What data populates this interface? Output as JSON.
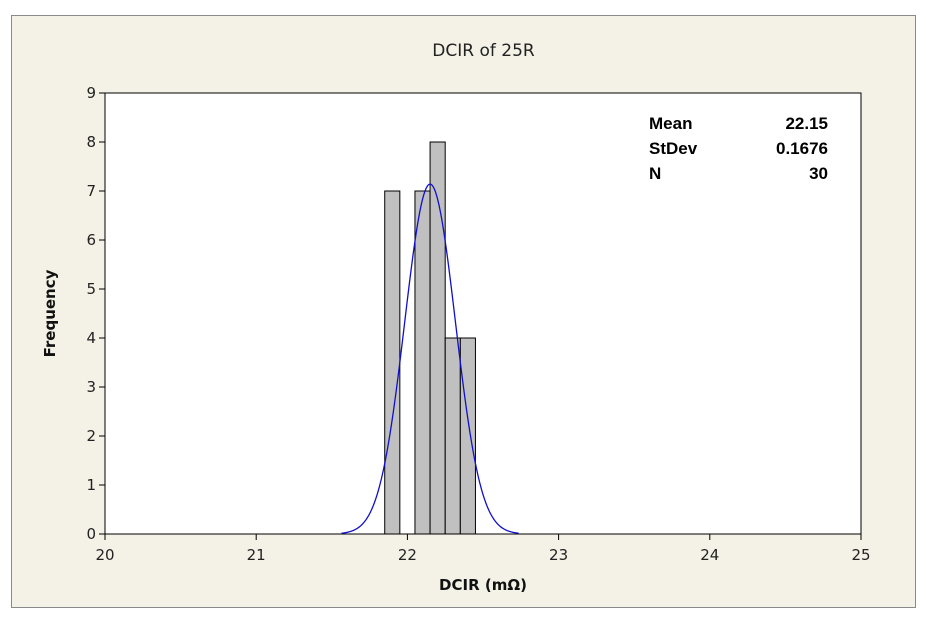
{
  "chart_data": {
    "type": "bar",
    "title": "DCIR of 25R",
    "xlabel": "DCIR (mΩ)",
    "ylabel": "Frequency",
    "xlim": [
      20,
      25
    ],
    "ylim": [
      0,
      9
    ],
    "xticks": [
      "20",
      "21",
      "22",
      "23",
      "24",
      "25"
    ],
    "yticks": [
      "0",
      "1",
      "2",
      "3",
      "4",
      "5",
      "6",
      "7",
      "8",
      "9"
    ],
    "bin_width": 0.1,
    "bins": [
      {
        "x": 21.9,
        "count": 7
      },
      {
        "x": 22.0,
        "count": 0
      },
      {
        "x": 22.1,
        "count": 7
      },
      {
        "x": 22.2,
        "count": 8
      },
      {
        "x": 22.3,
        "count": 4
      },
      {
        "x": 22.4,
        "count": 4
      }
    ],
    "fit": {
      "type": "normal",
      "mean": 22.15,
      "stdev": 0.1676,
      "n": 30,
      "color": "#1010cc"
    },
    "bar_color": "#c0c0c0",
    "grid": false,
    "stats": [
      {
        "label": "Mean",
        "value": "22.15"
      },
      {
        "label": "StDev",
        "value": "0.1676"
      },
      {
        "label": "N",
        "value": "30"
      }
    ]
  }
}
